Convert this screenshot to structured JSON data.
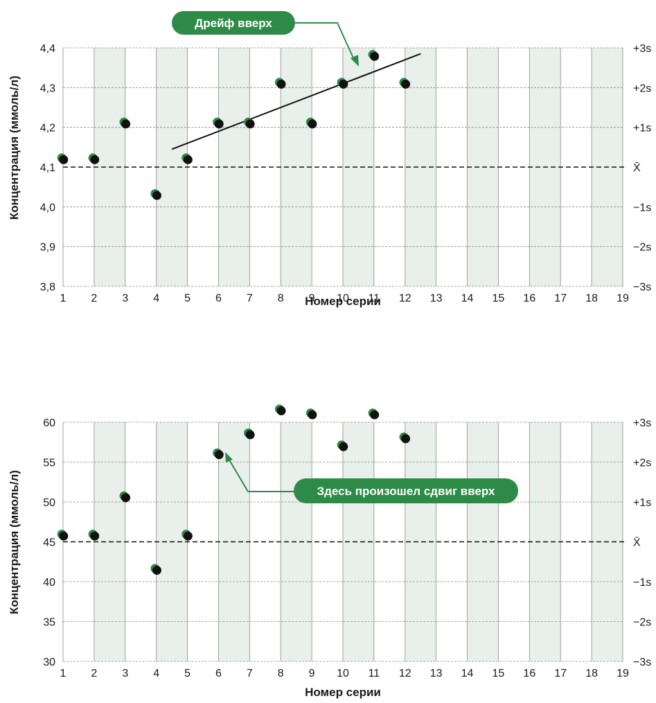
{
  "colors": {
    "band": "#e9efeb",
    "accent": "#2e8b47",
    "grid": "#8a8a8a",
    "point": "#111111",
    "point_edge": "#2e8b47"
  },
  "chart_data": [
    {
      "type": "scatter",
      "xlabel": "Номер серии",
      "ylabel": "Концентрация (ммоль/л)",
      "x_ticks": [
        "1",
        "2",
        "3",
        "4",
        "5",
        "6",
        "7",
        "8",
        "9",
        "10",
        "11",
        "12",
        "13",
        "14",
        "15",
        "16",
        "17",
        "18",
        "19"
      ],
      "xlim": [
        1,
        19
      ],
      "ylim": [
        3.8,
        4.4
      ],
      "y_ticks": [
        {
          "value": 4.4,
          "label": "4,4"
        },
        {
          "value": 4.3,
          "label": "4,3"
        },
        {
          "value": 4.2,
          "label": "4,2"
        },
        {
          "value": 4.1,
          "label": "4,1"
        },
        {
          "value": 4.0,
          "label": "4,0"
        },
        {
          "value": 3.9,
          "label": "3,9"
        },
        {
          "value": 3.8,
          "label": "3,8"
        }
      ],
      "right_labels": [
        {
          "value": 4.4,
          "label": "+3s"
        },
        {
          "value": 4.3,
          "label": "+2s"
        },
        {
          "value": 4.2,
          "label": "+1s"
        },
        {
          "value": 4.1,
          "label": "X̄"
        },
        {
          "value": 4.0,
          "label": "−1s"
        },
        {
          "value": 3.9,
          "label": "−2s"
        },
        {
          "value": 3.8,
          "label": "−3s"
        }
      ],
      "mean": 4.1,
      "shaded_bands": [
        [
          2,
          3
        ],
        [
          4,
          5
        ],
        [
          6,
          7
        ],
        [
          8,
          9
        ],
        [
          10,
          11
        ],
        [
          12,
          13
        ],
        [
          14,
          15
        ],
        [
          16,
          17
        ],
        [
          18,
          19
        ]
      ],
      "points": [
        {
          "x": 1,
          "y": 4.12
        },
        {
          "x": 2,
          "y": 4.12
        },
        {
          "x": 3,
          "y": 4.21
        },
        {
          "x": 4,
          "y": 4.03
        },
        {
          "x": 5,
          "y": 4.12
        },
        {
          "x": 6,
          "y": 4.21
        },
        {
          "x": 7,
          "y": 4.21
        },
        {
          "x": 8,
          "y": 4.31
        },
        {
          "x": 9,
          "y": 4.21
        },
        {
          "x": 10,
          "y": 4.31
        },
        {
          "x": 11,
          "y": 4.38
        },
        {
          "x": 12,
          "y": 4.31
        }
      ],
      "trend_line": {
        "x": [
          4.5,
          12.5
        ],
        "y": [
          4.145,
          4.385
        ]
      },
      "annotation": {
        "text": "Дрейф вверх"
      }
    },
    {
      "type": "scatter",
      "xlabel": "Номер серии",
      "ylabel": "Концентрация (ммоль/л)",
      "x_ticks": [
        "1",
        "2",
        "3",
        "4",
        "5",
        "6",
        "7",
        "8",
        "9",
        "10",
        "11",
        "12",
        "13",
        "14",
        "15",
        "16",
        "17",
        "18",
        "19"
      ],
      "xlim": [
        1,
        19
      ],
      "ylim": [
        30,
        60
      ],
      "y_ticks": [
        {
          "value": 60,
          "label": "60"
        },
        {
          "value": 55,
          "label": "55"
        },
        {
          "value": 50,
          "label": "50"
        },
        {
          "value": 45,
          "label": "45"
        },
        {
          "value": 40,
          "label": "40"
        },
        {
          "value": 35,
          "label": "35"
        },
        {
          "value": 30,
          "label": "30"
        }
      ],
      "right_labels": [
        {
          "value": 60,
          "label": "+3s"
        },
        {
          "value": 55,
          "label": "+2s"
        },
        {
          "value": 50,
          "label": "+1s"
        },
        {
          "value": 45,
          "label": "X̄"
        },
        {
          "value": 40,
          "label": "−1s"
        },
        {
          "value": 35,
          "label": "−2s"
        },
        {
          "value": 30,
          "label": "−3s"
        }
      ],
      "mean": 45,
      "shaded_bands": [
        [
          2,
          3
        ],
        [
          4,
          5
        ],
        [
          6,
          7
        ],
        [
          8,
          9
        ],
        [
          10,
          11
        ],
        [
          12,
          13
        ],
        [
          14,
          15
        ],
        [
          16,
          17
        ],
        [
          18,
          19
        ]
      ],
      "points": [
        {
          "x": 1,
          "y": 45.8
        },
        {
          "x": 2,
          "y": 45.8
        },
        {
          "x": 3,
          "y": 50.6
        },
        {
          "x": 4,
          "y": 41.5
        },
        {
          "x": 5,
          "y": 45.8
        },
        {
          "x": 6,
          "y": 56.0
        },
        {
          "x": 7,
          "y": 58.5
        },
        {
          "x": 8,
          "y": 61.5
        },
        {
          "x": 9,
          "y": 61.0
        },
        {
          "x": 10,
          "y": 57.0
        },
        {
          "x": 11,
          "y": 61.0
        },
        {
          "x": 12,
          "y": 58.0
        }
      ],
      "annotation": {
        "text": "Здесь произошел сдвиг вверх"
      }
    }
  ]
}
